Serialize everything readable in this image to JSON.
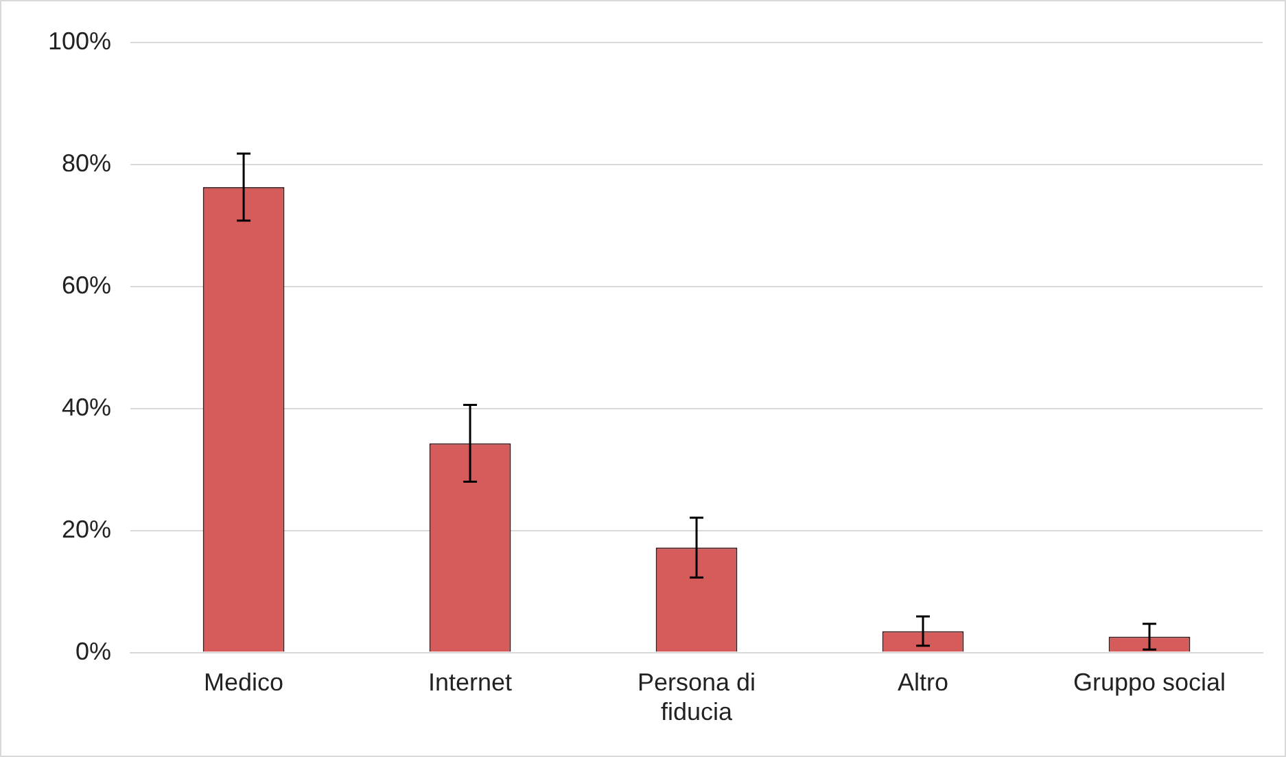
{
  "chart_data": {
    "type": "bar",
    "categories": [
      "Medico",
      "Internet",
      "Persona di fiducia",
      "Altro",
      "Gruppo social"
    ],
    "values": [
      76.3,
      34.3,
      17.2,
      3.5,
      2.6
    ],
    "errors": [
      5.5,
      6.3,
      4.9,
      2.4,
      2.1
    ],
    "color": "#d65b5b",
    "ylim": [
      0,
      100
    ],
    "yticks": [
      {
        "value": 0,
        "label": "0%"
      },
      {
        "value": 20,
        "label": "20%"
      },
      {
        "value": 40,
        "label": "40%"
      },
      {
        "value": 60,
        "label": "60%"
      },
      {
        "value": 80,
        "label": "80%"
      },
      {
        "value": 100,
        "label": "100%"
      }
    ],
    "grid": "y"
  }
}
